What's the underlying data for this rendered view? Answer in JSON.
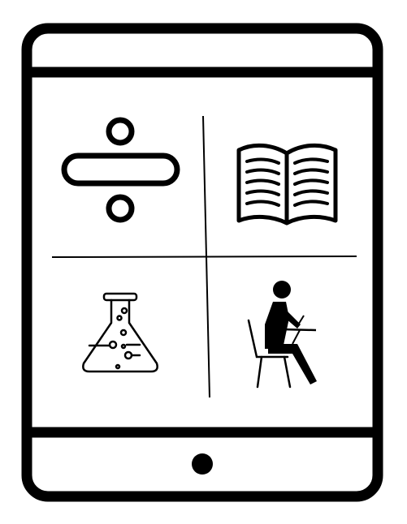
{
  "illustration": {
    "subject": "tablet-education-icon",
    "stroke_color": "#000000",
    "background_color": "#ffffff",
    "panels": [
      {
        "icon": "division-sign-icon"
      },
      {
        "icon": "open-book-icon"
      },
      {
        "icon": "lab-flask-icon"
      },
      {
        "icon": "student-writing-icon"
      }
    ],
    "hardware": {
      "home_button": "home-button-icon"
    }
  }
}
